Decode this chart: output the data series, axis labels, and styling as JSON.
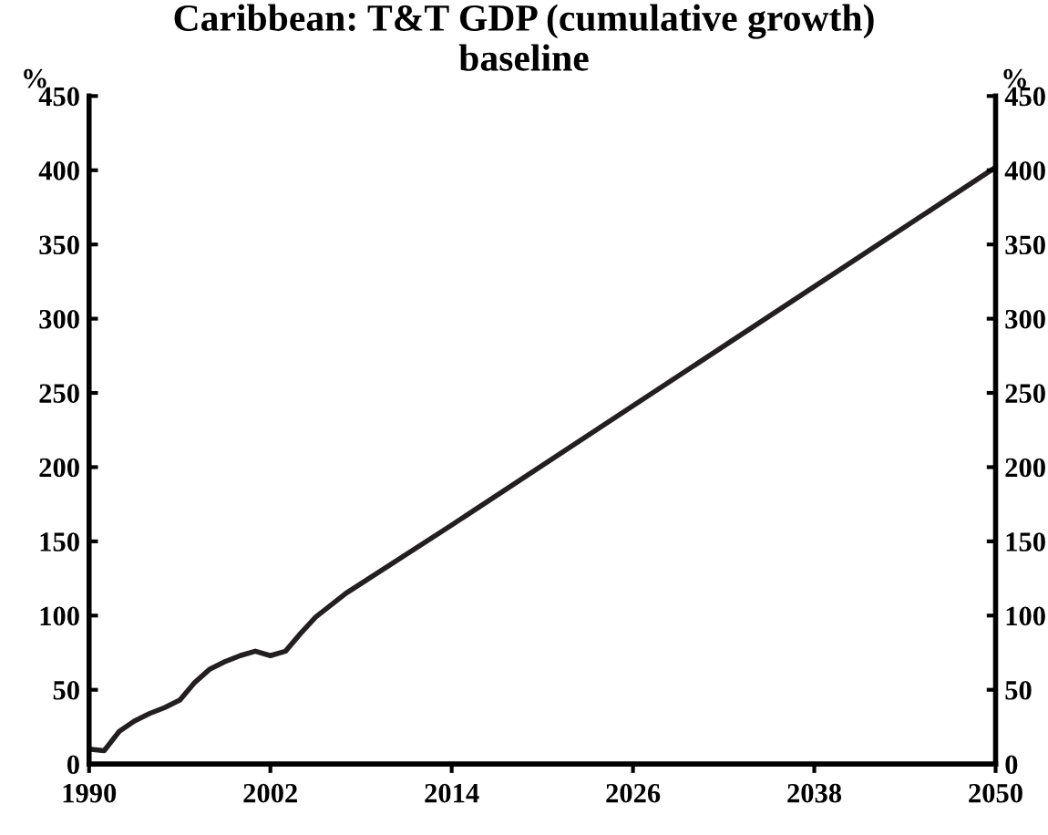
{
  "chart_data": {
    "type": "line",
    "title": "Caribbean: T&T GDP (cumulative growth)\nbaseline",
    "ylabel": "%",
    "y2label": "%",
    "x": [
      1990,
      1991,
      1992,
      1993,
      1994,
      1995,
      1996,
      1997,
      1998,
      1999,
      2000,
      2001,
      2002,
      2003,
      2004,
      2005,
      2006,
      2007,
      2014,
      2050
    ],
    "series": [
      {
        "color": "#231f20",
        "values": [
          10,
          9,
          22,
          29,
          34,
          38,
          43,
          55,
          64,
          69,
          73,
          76,
          73,
          76,
          88,
          99,
          107,
          115,
          161,
          402
        ]
      }
    ],
    "xlim": [
      1990,
      2050
    ],
    "xticks": [
      1990,
      2002,
      2014,
      2026,
      2038,
      2050
    ],
    "ylim": [
      0,
      450
    ],
    "yticks": [
      0,
      50,
      100,
      150,
      200,
      250,
      300,
      350,
      400,
      450
    ],
    "y2lim": [
      0,
      450
    ],
    "y2ticks": [
      0,
      50,
      100,
      150,
      200,
      250,
      300,
      350,
      400,
      450
    ],
    "grid": false,
    "legend": false,
    "marker": "none",
    "line_style": "solid"
  }
}
